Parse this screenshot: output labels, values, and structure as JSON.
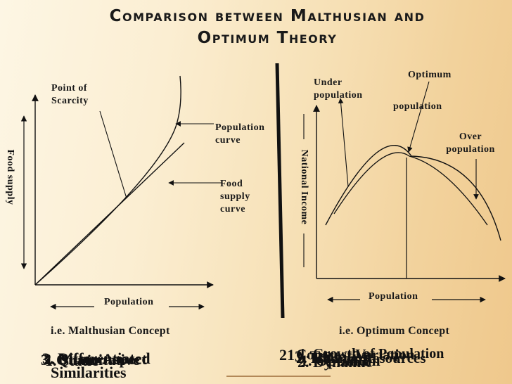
{
  "title": {
    "line1": "Comparison between Malthusian and",
    "line2": "Optimum Theory"
  },
  "left_diagram": {
    "point_of_scarcity_line1": "Point of",
    "point_of_scarcity_line2": "Scarcity",
    "population_curve_line1": "Population",
    "population_curve_line2": "curve",
    "food_supply_curve_line1": "Food",
    "food_supply_curve_line2": "supply",
    "food_supply_curve_line3": "curve",
    "y_axis_label": "Food supply",
    "x_axis_label": "Population",
    "concept": "i.e. Malthusian Concept"
  },
  "right_diagram": {
    "under_population_line1": "Under",
    "under_population_line2": "population",
    "optimum_line1": "Optimum",
    "optimum_line2": "population",
    "over_population_line1": "Over",
    "over_population_line2": "population",
    "y_axis_label": "National Income",
    "x_axis_label": "Population",
    "concept": "i.e. Optimum Concept"
  },
  "bottom_overlap": {
    "left_items": [
      "3. Differentiated",
      "3. Quantitative",
      "2. Micro Aspect",
      "1. Static",
      "Similarities"
    ],
    "right_items": [
      "2. Human Resources",
      "1. Optimum",
      "2. Dynamic",
      "3. Tentative",
      "1. Growth of Population",
      "Contrast Variation"
    ],
    "right_number_prefix": "21"
  }
}
